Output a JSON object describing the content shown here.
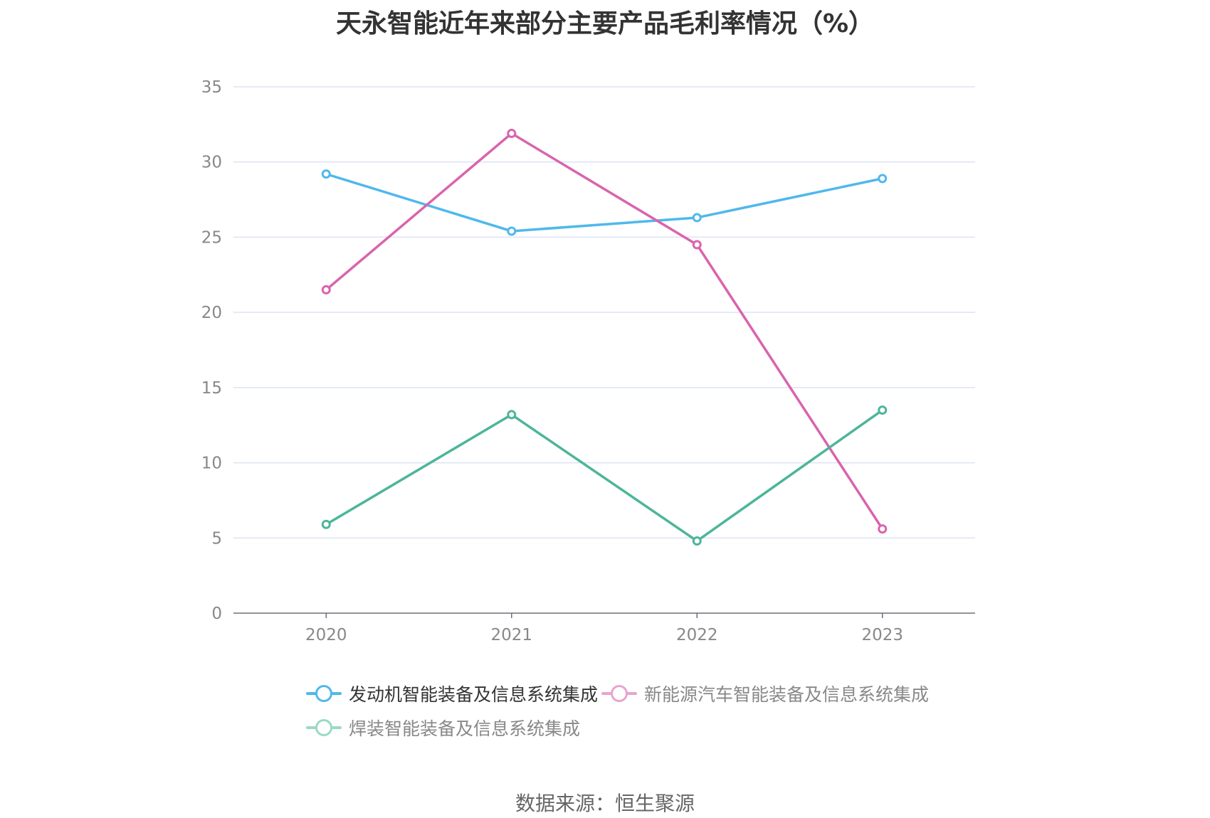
{
  "title": "天永智能近年来部分主要产品毛利率情况（%）",
  "source": "数据来源：恒生聚源",
  "colors": {
    "grid": "#dde3f5",
    "axis": "#6e7079",
    "tick_text": "#888888"
  },
  "legend": [
    {
      "name": "发动机智能装备及信息系统集成",
      "color": "#4fb8ec",
      "state": "active"
    },
    {
      "name": "新能源汽车智能装备及信息系统集成",
      "color": "#e8a4cf",
      "state": "muted"
    },
    {
      "name": "焊装智能装备及信息系统集成",
      "color": "#9ad9c6",
      "state": "muted"
    }
  ],
  "chart_data": {
    "type": "line",
    "title": "天永智能近年来部分主要产品毛利率情况（%）",
    "xlabel": "",
    "ylabel": "",
    "categories": [
      "2020",
      "2021",
      "2022",
      "2023"
    ],
    "ylim": [
      0,
      35
    ],
    "yticks": [
      0,
      5,
      10,
      15,
      20,
      25,
      30,
      35
    ],
    "grid": true,
    "legend_position": "bottom",
    "series": [
      {
        "name": "发动机智能装备及信息系统集成",
        "color": "#4fb8ec",
        "values": [
          29.2,
          25.4,
          26.3,
          28.9
        ]
      },
      {
        "name": "新能源汽车智能装备及信息系统集成",
        "color": "#d964ad",
        "values": [
          21.5,
          31.9,
          24.5,
          5.6
        ]
      },
      {
        "name": "焊装智能装备及信息系统集成",
        "color": "#4db59a",
        "values": [
          5.9,
          13.2,
          4.8,
          13.5
        ]
      }
    ]
  }
}
